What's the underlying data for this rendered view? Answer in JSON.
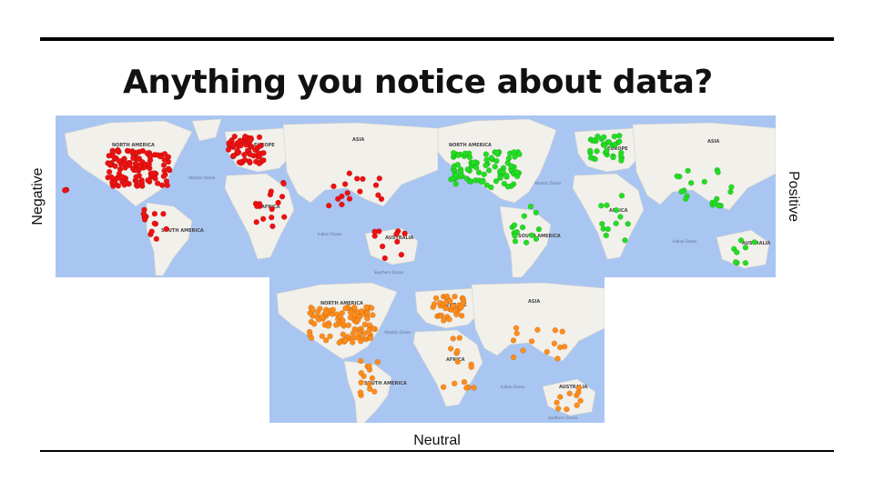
{
  "slide": {
    "title": "Anything you notice about data?"
  },
  "labels": {
    "negative": "Negative",
    "positive": "Positive",
    "neutral": "Neutral"
  },
  "map_text": {
    "north_america": "NORTH AMERICA",
    "south_america": "SOUTH AMERICA",
    "europe": "EUROPE",
    "asia": "ASIA",
    "africa": "AFRICA",
    "australia": "AUSTRALIA",
    "atlantic_ocean": "Atlantic Ocean",
    "indian_ocean": "Indian Ocean",
    "southern_ocean": "Southern Ocean"
  },
  "colors": {
    "negative": "#ee1111",
    "positive": "#22dd22",
    "neutral": "#ff8c1a",
    "ocean": "#a9c6f2",
    "land": "#f2f0eb"
  },
  "maps": [
    {
      "id": "negative",
      "label": "Negative",
      "color": "#ee1111"
    },
    {
      "id": "positive",
      "label": "Positive",
      "color": "#22dd22"
    },
    {
      "id": "neutral",
      "label": "Neutral",
      "color": "#ff8c1a"
    }
  ]
}
